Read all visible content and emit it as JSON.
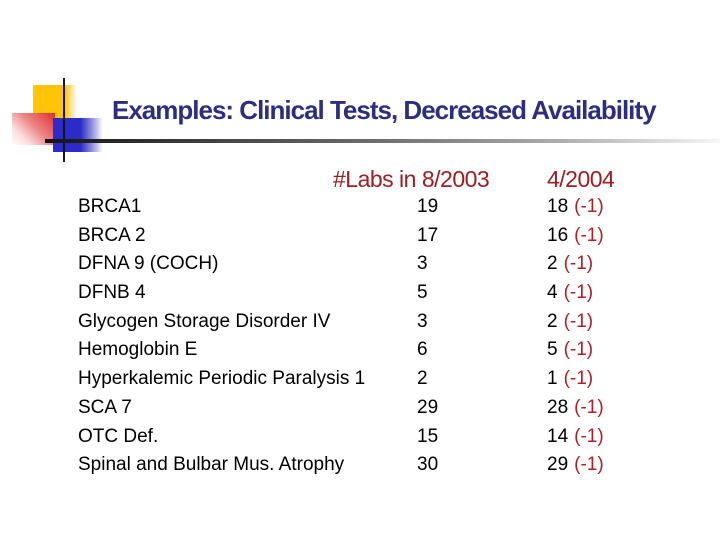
{
  "slide": {
    "title": "Examples: Clinical Tests, Decreased Availability",
    "table": {
      "header_2003": "#Labs in 8/2003",
      "header_2004": "4/2004",
      "rows": [
        {
          "test": "BRCA1",
          "labs_2003": "19",
          "labs_2004": "18",
          "change": "(-1)"
        },
        {
          "test": "BRCA 2",
          "labs_2003": "17",
          "labs_2004": "16",
          "change": "(-1)"
        },
        {
          "test": "DFNA 9 (COCH)",
          "labs_2003": "3",
          "labs_2004": "2",
          "change": "(-1)"
        },
        {
          "test": "DFNB 4",
          "labs_2003": "5",
          "labs_2004": "4",
          "change": "(-1)"
        },
        {
          "test": "Glycogen Storage Disorder IV",
          "labs_2003": "3",
          "labs_2004": "2",
          "change": "(-1)"
        },
        {
          "test": "Hemoglobin E",
          "labs_2003": "6",
          "labs_2004": "5",
          "change": "(-1)"
        },
        {
          "test": "Hyperkalemic Periodic Paralysis 1",
          "labs_2003": "2",
          "labs_2004": "1",
          "change": "(-1)"
        },
        {
          "test": "SCA 7",
          "labs_2003": "29",
          "labs_2004": "28",
          "change": "(-1)"
        },
        {
          "test": "OTC Def.",
          "labs_2003": "15",
          "labs_2004": "14",
          "change": "(-1)"
        },
        {
          "test": "Spinal and Bulbar Mus. Atrophy",
          "labs_2003": "30",
          "labs_2004": "29",
          "change": "(-1)"
        }
      ]
    },
    "colors": {
      "title": "#2d2e83",
      "header_red": "#9f1c20",
      "change_red": "#b21e24",
      "body_text": "#000000",
      "ornament_yellow": "#ffc408",
      "ornament_red": "#e02f2f",
      "ornament_blue": "#2b2bc8"
    }
  }
}
